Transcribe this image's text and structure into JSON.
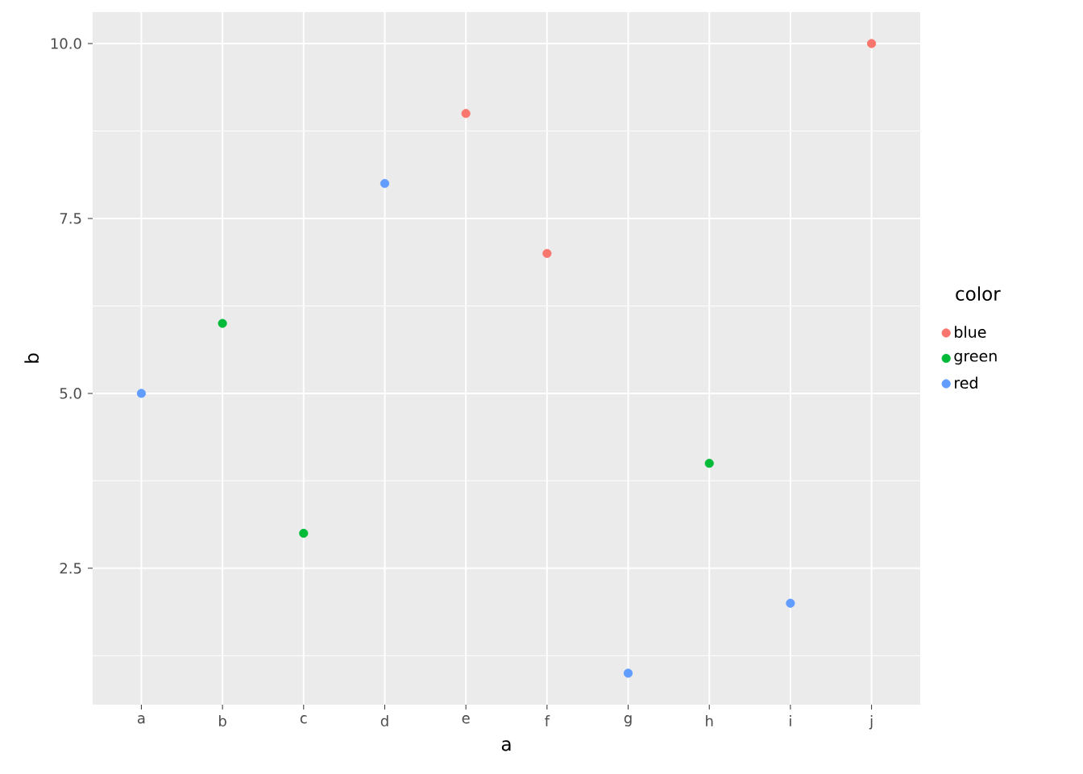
{
  "chart_data": {
    "type": "scatter",
    "xlabel": "a",
    "ylabel": "b",
    "legend_title": "color",
    "legend": "right",
    "grid": true,
    "categories": [
      "a",
      "b",
      "c",
      "d",
      "e",
      "f",
      "g",
      "h",
      "i",
      "j"
    ],
    "ylim": [
      0.55,
      10.45
    ],
    "yticks": [
      {
        "value": 2.5,
        "label": "2.5"
      },
      {
        "value": 5,
        "label": "5.0"
      },
      {
        "value": 7.5,
        "label": "7.5"
      },
      {
        "value": 10,
        "label": "10.0"
      }
    ],
    "series": [
      {
        "name": "blue",
        "color": "#f8766d",
        "values": [
          null,
          null,
          null,
          null,
          9,
          7,
          null,
          null,
          null,
          10
        ]
      },
      {
        "name": "green",
        "color": "#00ba38",
        "values": [
          null,
          6,
          3,
          null,
          null,
          null,
          null,
          4,
          null,
          null
        ]
      },
      {
        "name": "red",
        "color": "#619cff",
        "values": [
          5,
          null,
          null,
          8,
          null,
          null,
          1,
          null,
          2,
          null
        ]
      }
    ]
  }
}
